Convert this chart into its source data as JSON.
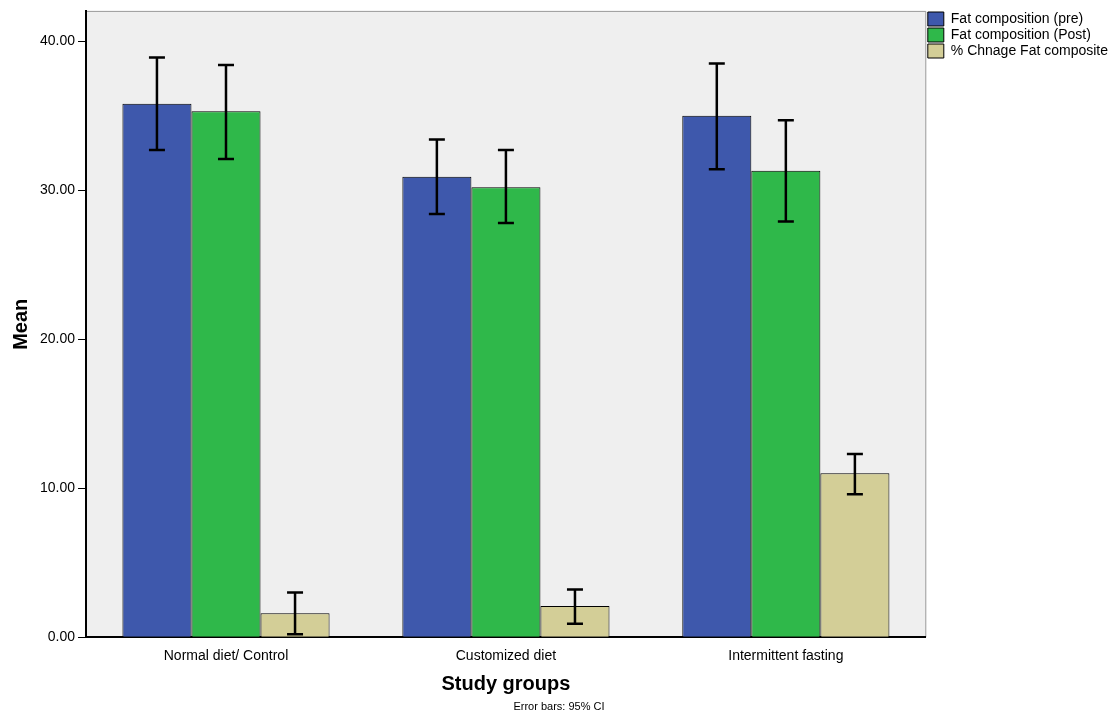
{
  "chart_data": {
    "type": "bar",
    "xlabel": "Study groups",
    "ylabel": "Mean",
    "categories": [
      "Normal diet/ Control",
      "Customized diet",
      "Intermittent fasting"
    ],
    "series": [
      {
        "name": "Fat composition (pre)",
        "color": "#3e58ac",
        "values": [
          35.8,
          30.9,
          35.0
        ],
        "errors": [
          [
            32.7,
            38.9
          ],
          [
            28.4,
            33.4
          ],
          [
            31.4,
            38.5
          ]
        ]
      },
      {
        "name": "Fat composition (Post)",
        "color": "#2fb84a",
        "values": [
          35.3,
          30.2,
          31.3
        ],
        "errors": [
          [
            32.1,
            38.4
          ],
          [
            27.8,
            32.7
          ],
          [
            27.9,
            34.7
          ]
        ]
      },
      {
        "name": "% Chnage Fat composite",
        "color": "#d3ce97",
        "values": [
          1.6,
          2.1,
          11.0
        ],
        "errors": [
          [
            0.2,
            3.0
          ],
          [
            0.9,
            3.2
          ],
          [
            9.6,
            12.3
          ]
        ]
      }
    ],
    "ylim": [
      0,
      42
    ],
    "yticks": [
      {
        "value": 0,
        "label": "0.00"
      },
      {
        "value": 10,
        "label": "10.00"
      },
      {
        "value": 20,
        "label": "20.00"
      },
      {
        "value": 30,
        "label": "30.00"
      },
      {
        "value": 40,
        "label": "40.00"
      }
    ],
    "legend": "top right",
    "grid": false,
    "annotations": [
      "Error bars: 95% CI"
    ]
  }
}
